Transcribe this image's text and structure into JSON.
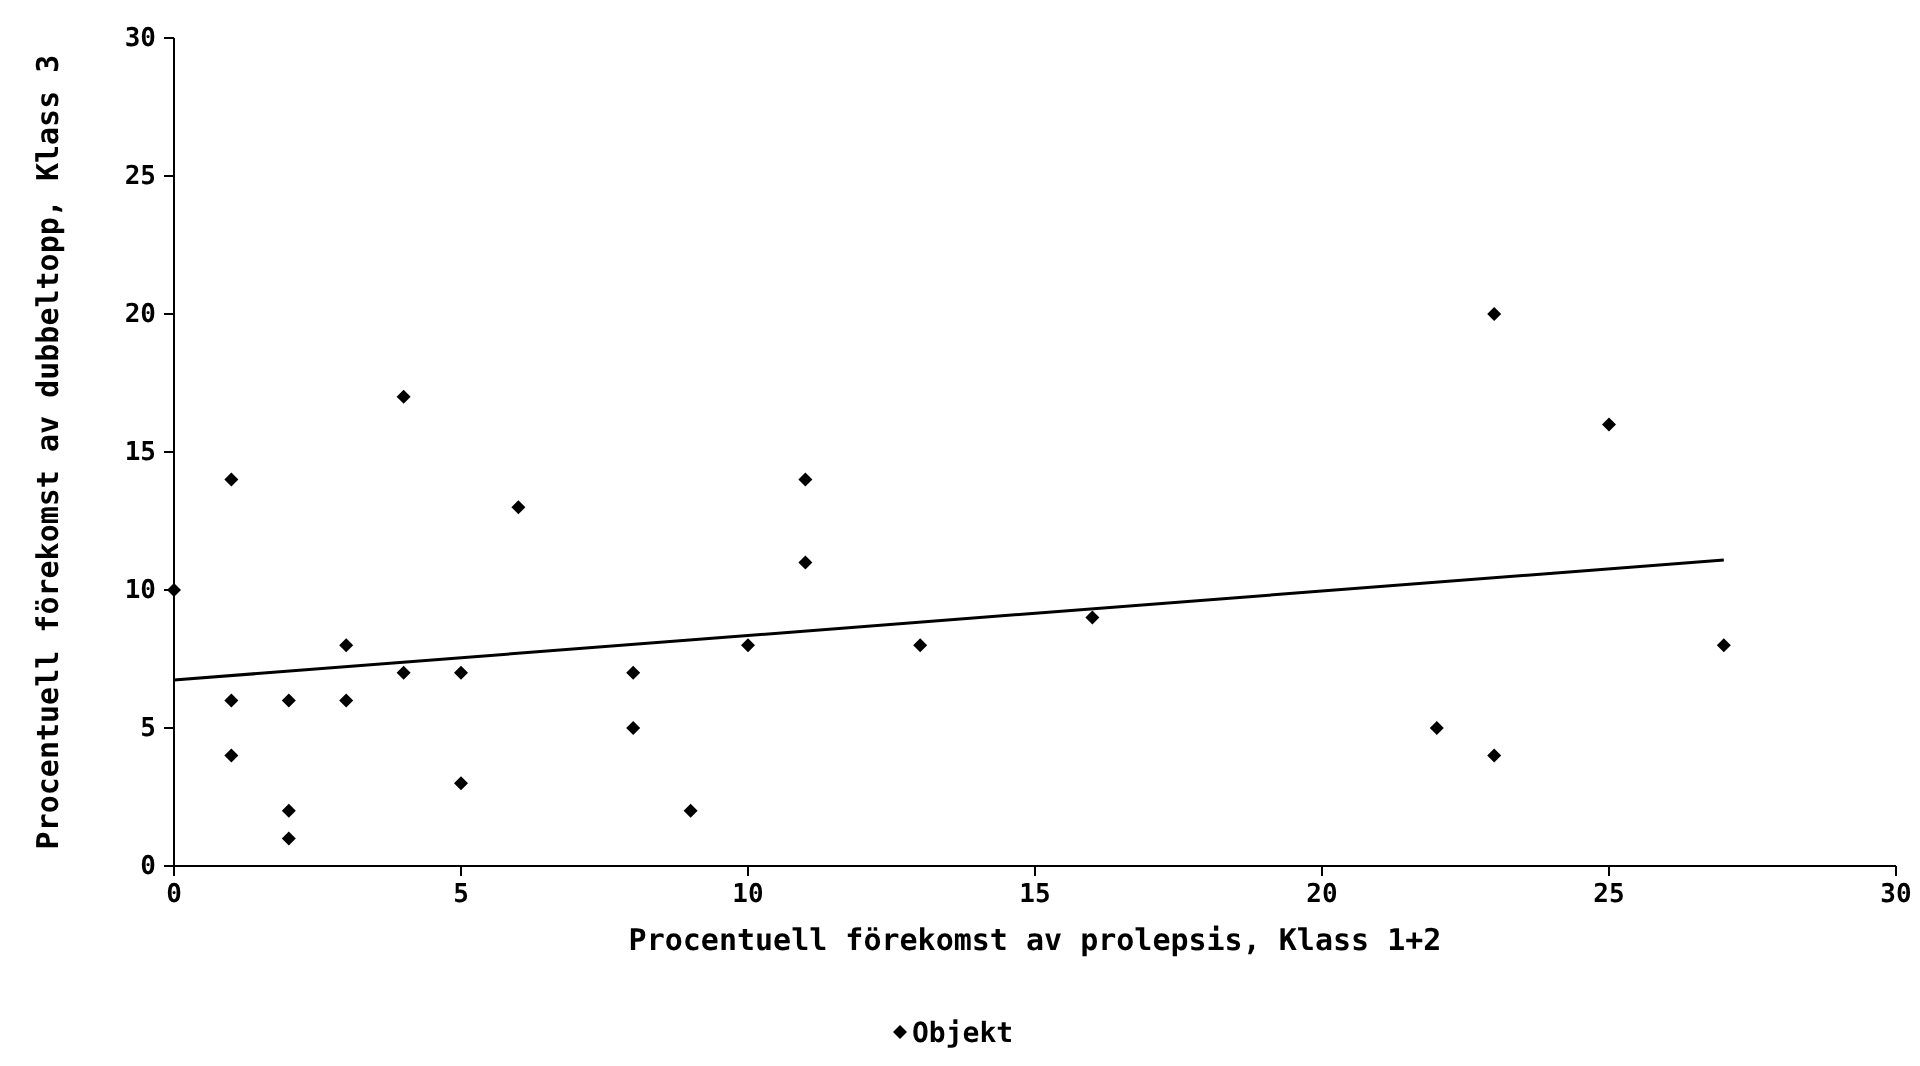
{
  "chart_data": {
    "type": "scatter",
    "xlabel": "Procentuell förekomst av prolepsis, Klass 1+2",
    "ylabel": "Procentuell förekomst av dubbeltopp, Klass 3",
    "xlim": [
      0,
      30
    ],
    "ylim": [
      0,
      30
    ],
    "xticks": [
      0,
      5,
      10,
      15,
      20,
      25,
      30
    ],
    "yticks": [
      0,
      5,
      10,
      15,
      20,
      25,
      30
    ],
    "grid": false,
    "legend": "bottom",
    "marker": "diamond",
    "series": [
      {
        "name": "Objekt",
        "color": "#000000",
        "x": [
          0,
          1,
          1,
          1,
          2,
          2,
          2,
          3,
          3,
          4,
          4,
          5,
          5,
          6,
          8,
          8,
          9,
          10,
          11,
          11,
          13,
          16,
          22,
          23,
          23,
          25,
          27
        ],
        "values": [
          10,
          14,
          6,
          4,
          6,
          2,
          1,
          8,
          6,
          17,
          7,
          7,
          3,
          13,
          7,
          5,
          2,
          8,
          14,
          11,
          8,
          9,
          5,
          20,
          4,
          16,
          8
        ]
      },
      {
        "type": "line",
        "marker": "none",
        "color": "#000000",
        "x": [
          0,
          27
        ],
        "values": [
          6.74,
          11.09
        ]
      }
    ]
  }
}
